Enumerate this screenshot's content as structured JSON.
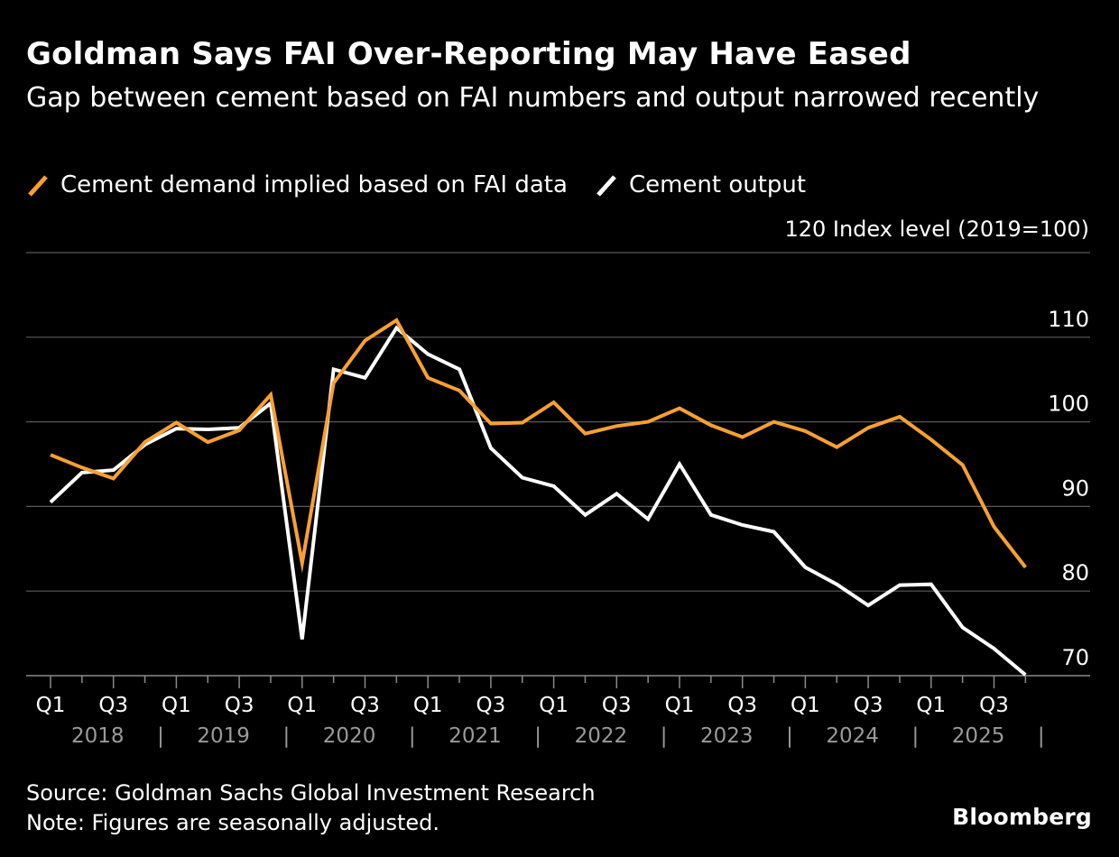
{
  "header": {
    "title": "Goldman Says FAI Over-Reporting May Have Eased",
    "subtitle": "Gap between cement based on FAI numbers and output narrowed recently"
  },
  "legend": {
    "items": [
      {
        "label": "Cement demand implied based on FAI data",
        "color": "#f7a033"
      },
      {
        "label": "Cement output",
        "color": "#ffffff"
      }
    ]
  },
  "axis": {
    "y_unit": "Index level (2019=100)"
  },
  "footer": {
    "source": "Source: Goldman Sachs Global Investment Research",
    "note": "Note: Figures are seasonally adjusted.",
    "brand": "Bloomberg"
  },
  "chart_data": {
    "type": "line",
    "title": "Goldman Says FAI Over-Reporting May Have Eased",
    "subtitle": "Gap between cement based on FAI numbers and output narrowed recently",
    "ylabel": "Index level (2019=100)",
    "ylim": [
      69,
      120
    ],
    "yticks": [
      70,
      80,
      90,
      100,
      110,
      120
    ],
    "grid": true,
    "legend_position": "top-left",
    "x": [
      "2018 Q1",
      "2018 Q2",
      "2018 Q3",
      "2018 Q4",
      "2019 Q1",
      "2019 Q2",
      "2019 Q3",
      "2019 Q4",
      "2020 Q1",
      "2020 Q2",
      "2020 Q3",
      "2020 Q4",
      "2021 Q1",
      "2021 Q2",
      "2021 Q3",
      "2021 Q4",
      "2022 Q1",
      "2022 Q2",
      "2022 Q3",
      "2022 Q4",
      "2023 Q1",
      "2023 Q2",
      "2023 Q3",
      "2023 Q4",
      "2024 Q1",
      "2024 Q2",
      "2024 Q3",
      "2024 Q4",
      "2025 Q1",
      "2025 Q2",
      "2025 Q3",
      "2025 Q4"
    ],
    "x_tick_labels": [
      "Q1",
      "Q3",
      "Q1",
      "Q3",
      "Q1",
      "Q3",
      "Q1",
      "Q3",
      "Q1",
      "Q3",
      "Q1",
      "Q3",
      "Q1",
      "Q3",
      "Q1",
      "Q3"
    ],
    "years": [
      "2018",
      "2019",
      "2020",
      "2021",
      "2022",
      "2023",
      "2024",
      "2025"
    ],
    "series": [
      {
        "name": "Cement demand implied based on FAI data",
        "color": "#f7a033",
        "values": [
          96.1,
          94.6,
          93.3,
          97.6,
          99.9,
          97.6,
          99.0,
          103.2,
          83.3,
          104.6,
          109.6,
          112.0,
          105.2,
          103.7,
          99.8,
          99.9,
          102.3,
          98.6,
          99.5,
          100.0,
          101.6,
          99.6,
          98.2,
          100.0,
          98.9,
          97.0,
          99.3,
          100.6,
          97.9,
          94.9,
          87.6,
          82.8
        ]
      },
      {
        "name": "Cement output",
        "color": "#ffffff",
        "values": [
          90.5,
          94.0,
          94.3,
          97.3,
          99.2,
          99.1,
          99.3,
          102.2,
          74.3,
          106.2,
          105.2,
          111.1,
          108.0,
          106.2,
          96.9,
          93.4,
          92.4,
          89.0,
          91.5,
          88.5,
          95.0,
          89.0,
          87.8,
          87.0,
          82.8,
          80.8,
          78.3,
          80.7,
          80.8,
          75.7,
          73.2,
          70.1
        ]
      }
    ]
  }
}
